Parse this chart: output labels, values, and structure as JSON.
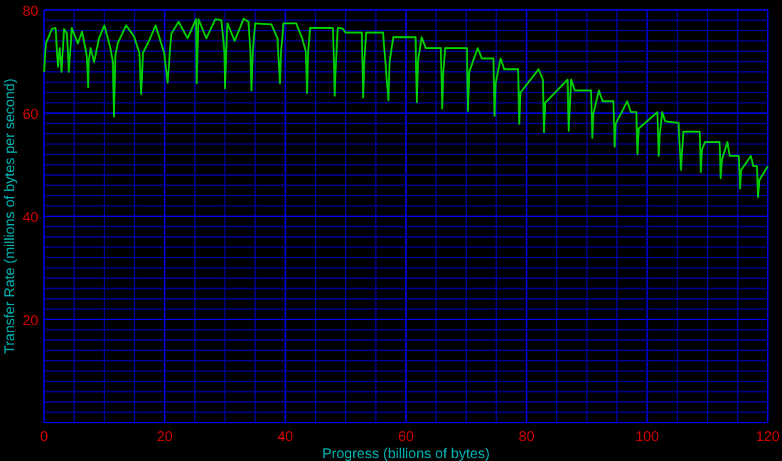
{
  "chart_data": {
    "type": "line",
    "xlabel": "Progress (billions of bytes)",
    "ylabel": "Transfer Rate (millions of bytes per second)",
    "xlim": [
      0,
      120
    ],
    "ylim": [
      0,
      80
    ],
    "xticks": [
      0,
      {
        "value": 5,
        "label": null
      },
      {
        "value": 10,
        "label": null
      },
      {
        "value": 15,
        "label": null
      },
      20,
      {
        "value": 25,
        "label": null
      },
      {
        "value": 30,
        "label": null
      },
      {
        "value": 35,
        "label": null
      },
      40,
      {
        "value": 45,
        "label": null
      },
      {
        "value": 50,
        "label": null
      },
      {
        "value": 55,
        "label": null
      },
      60,
      {
        "value": 65,
        "label": null
      },
      {
        "value": 70,
        "label": null
      },
      {
        "value": 75,
        "label": null
      },
      80,
      {
        "value": 85,
        "label": null
      },
      {
        "value": 90,
        "label": null
      },
      {
        "value": 95,
        "label": null
      },
      100,
      {
        "value": 105,
        "label": null
      },
      {
        "value": 110,
        "label": null
      },
      {
        "value": 115,
        "label": null
      },
      120
    ],
    "yticks": [
      {
        "value": 0,
        "label": null
      },
      {
        "value": 2,
        "label": null
      },
      {
        "value": 4,
        "label": null
      },
      {
        "value": 6,
        "label": null
      },
      {
        "value": 8,
        "label": null
      },
      {
        "value": 10,
        "label": null
      },
      {
        "value": 12,
        "label": null
      },
      {
        "value": 14,
        "label": null
      },
      {
        "value": 16,
        "label": null
      },
      {
        "value": 18,
        "label": null
      },
      20,
      {
        "value": 22,
        "label": null
      },
      {
        "value": 24,
        "label": null
      },
      {
        "value": 26,
        "label": null
      },
      {
        "value": 28,
        "label": null
      },
      {
        "value": 30,
        "label": null
      },
      {
        "value": 32,
        "label": null
      },
      {
        "value": 34,
        "label": null
      },
      {
        "value": 36,
        "label": null
      },
      {
        "value": 38,
        "label": null
      },
      40,
      {
        "value": 42,
        "label": null
      },
      {
        "value": 44,
        "label": null
      },
      {
        "value": 46,
        "label": null
      },
      {
        "value": 48,
        "label": null
      },
      {
        "value": 50,
        "label": null
      },
      {
        "value": 52,
        "label": null
      },
      {
        "value": 54,
        "label": null
      },
      {
        "value": 56,
        "label": null
      },
      {
        "value": 58,
        "label": null
      },
      60,
      {
        "value": 62,
        "label": null
      },
      {
        "value": 64,
        "label": null
      },
      {
        "value": 66,
        "label": null
      },
      {
        "value": 68,
        "label": null
      },
      {
        "value": 70,
        "label": null
      },
      {
        "value": 72,
        "label": null
      },
      {
        "value": 74,
        "label": null
      },
      {
        "value": 76,
        "label": null
      },
      {
        "value": 78,
        "label": null
      },
      80
    ],
    "grid": true,
    "marker": "none",
    "line_style": "solid",
    "series": [
      {
        "color": "#00cc00",
        "x": [
          0,
          0.3,
          1.3,
          1.9,
          2.3,
          2.6,
          2.9,
          3.3,
          3.8,
          4.1,
          4.6,
          5.6,
          6.3,
          7.1,
          7.3,
          7.4,
          7.7,
          8.3,
          9.1,
          10,
          11,
          11.4,
          11.6,
          11.8,
          12.2,
          13.6,
          14.9,
          15.8,
          16.1,
          16.4,
          17.4,
          18.5,
          19.9,
          20.5,
          20.8,
          21.1,
          22.3,
          23.8,
          25.2,
          25.3,
          25.6,
          26.9,
          28.4,
          29.4,
          29.9,
          30,
          30.2,
          30.4,
          31.6,
          33.1,
          33.9,
          34.2,
          34.4,
          34.6,
          35,
          37.7,
          38.7,
          39.1,
          39.3,
          39.7,
          41.8,
          42.8,
          43.4,
          43.6,
          43.8,
          44.1,
          47.9,
          48.2,
          48.4,
          48.7,
          49.5,
          50,
          52.7,
          52.9,
          53.1,
          53.4,
          56.2,
          57.1,
          57.3,
          57.9,
          61.6,
          61.8,
          62,
          62.6,
          63.3,
          65.8,
          66,
          66.2,
          66.5,
          70.1,
          70.3,
          70.5,
          71.9,
          72.6,
          74.5,
          74.7,
          74.9,
          75.7,
          76.3,
          78.6,
          78.8,
          79,
          82,
          82.7,
          82.9,
          83.1,
          86.8,
          87,
          87.2,
          87.4,
          88,
          90.7,
          90.9,
          91.1,
          92,
          92.6,
          94.4,
          94.6,
          94.8,
          96.7,
          97.3,
          98.2,
          98.4,
          98.6,
          101.7,
          101.9,
          102.1,
          102.5,
          103,
          105.2,
          105.6,
          106,
          108.7,
          108.9,
          109.1,
          109.6,
          112,
          112.2,
          112.4,
          113.3,
          113.7,
          115.2,
          115.4,
          115.6,
          117.2,
          117.6,
          118.2,
          118.4,
          118.6,
          120
        ],
        "values": [
          68,
          73.5,
          76.3,
          76.5,
          69,
          72.6,
          68,
          76.3,
          75.4,
          68,
          76.5,
          73.5,
          75.8,
          71,
          65,
          69.9,
          72.6,
          69.9,
          74.5,
          77,
          72.6,
          70,
          59.3,
          71,
          73.5,
          77,
          74.9,
          71.7,
          63.7,
          71.7,
          74,
          77,
          71.7,
          65.9,
          71,
          75.4,
          77.7,
          74.5,
          78.2,
          65.8,
          78.2,
          74.5,
          78.2,
          78,
          72,
          64.8,
          72,
          77.4,
          74,
          78.3,
          77.7,
          72,
          64.4,
          72,
          77.4,
          77.2,
          74.5,
          65.8,
          72,
          77.4,
          77.4,
          74.5,
          72,
          63.9,
          72,
          76.5,
          76.5,
          63.4,
          70,
          76.5,
          76.4,
          75.6,
          75.6,
          63,
          70,
          75.6,
          75.6,
          62.5,
          70,
          74.7,
          74.7,
          62.1,
          70,
          74.7,
          72.6,
          72.6,
          60.9,
          68,
          72.6,
          72.6,
          60.4,
          68,
          72.6,
          70.6,
          70.6,
          59.5,
          66,
          70.6,
          68.5,
          68.5,
          57.9,
          64,
          68.5,
          66.5,
          56.3,
          62,
          66.5,
          56.6,
          62,
          66.5,
          64.4,
          64.4,
          55.2,
          60,
          64.4,
          62.3,
          62.3,
          53.5,
          58,
          62.3,
          60.2,
          60.2,
          52,
          57,
          60.2,
          51.7,
          56,
          60.2,
          58.4,
          58.1,
          49,
          56.4,
          56.4,
          48.6,
          53,
          54.4,
          54.4,
          47.4,
          51,
          54.4,
          51.7,
          51.7,
          45.4,
          49,
          51.7,
          49.7,
          49.7,
          43.7,
          47,
          49.7
        ]
      }
    ]
  }
}
